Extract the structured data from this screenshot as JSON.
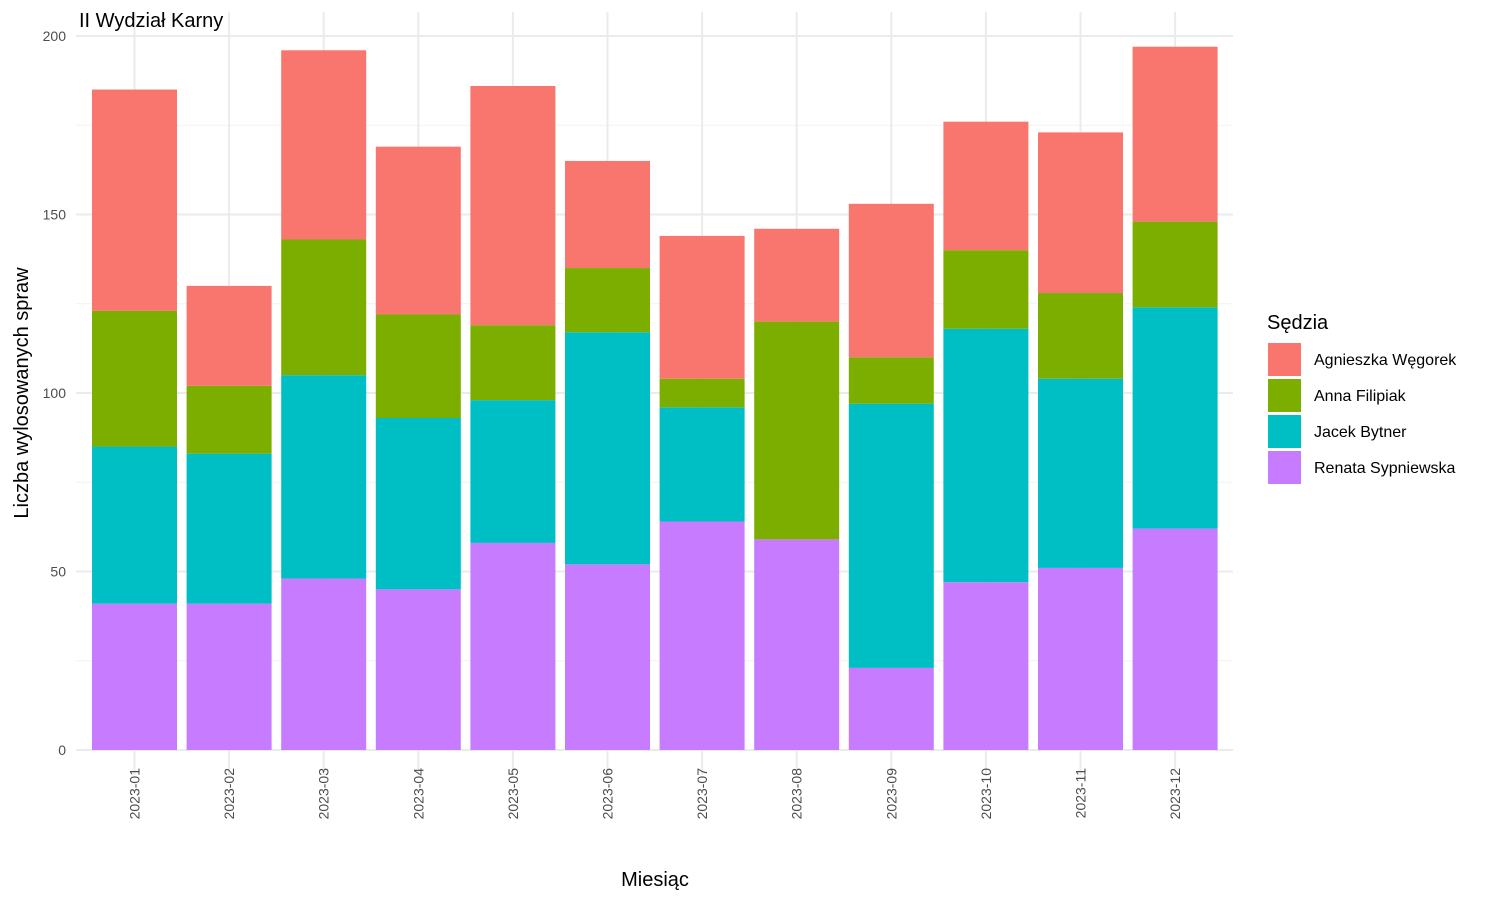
{
  "chart_data": {
    "type": "bar",
    "stacked": true,
    "title": "II Wydział Karny",
    "xlabel": "Miesiąc",
    "ylabel": "Liczba wylosowanych spraw",
    "ylim": [
      0,
      200
    ],
    "yticks": [
      0,
      50,
      100,
      150,
      200
    ],
    "grid": true,
    "legend_position": "right",
    "legend_title": "Sędzia",
    "categories": [
      "2023-01",
      "2023-02",
      "2023-03",
      "2023-04",
      "2023-05",
      "2023-06",
      "2023-07",
      "2023-08",
      "2023-09",
      "2023-10",
      "2023-11",
      "2023-12"
    ],
    "series": [
      {
        "name": "Renata Sypniewska",
        "color": "#C77CFF",
        "values": [
          41,
          41,
          48,
          45,
          58,
          52,
          64,
          59,
          23,
          47,
          51,
          62
        ]
      },
      {
        "name": "Jacek Bytner",
        "color": "#00BFC4",
        "values": [
          44,
          42,
          57,
          48,
          40,
          65,
          32,
          0,
          74,
          71,
          53,
          62
        ]
      },
      {
        "name": "Anna Filipiak",
        "color": "#7CAE00",
        "values": [
          38,
          19,
          38,
          29,
          21,
          18,
          8,
          61,
          13,
          22,
          24,
          24
        ]
      },
      {
        "name": "Agnieszka Węgorek",
        "color": "#F8766D",
        "values": [
          62,
          28,
          53,
          47,
          67,
          30,
          40,
          26,
          43,
          36,
          45,
          49
        ]
      }
    ],
    "legend_order": [
      "Agnieszka Węgorek",
      "Anna Filipiak",
      "Jacek Bytner",
      "Renata Sypniewska"
    ]
  }
}
